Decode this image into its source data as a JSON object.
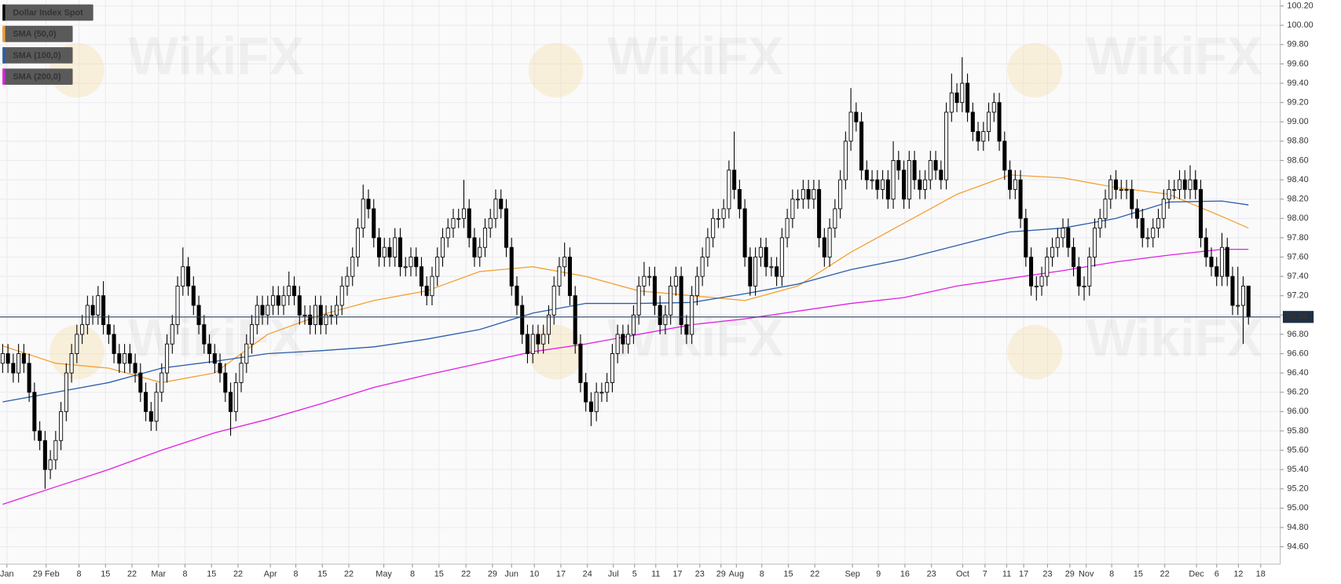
{
  "chart_data": {
    "type": "candlestick",
    "title": "Dollar Index Spot",
    "watermark": "WikiFX",
    "up_color": "#ffffff",
    "down_color": "#000000",
    "grid": true,
    "legend": "upper left",
    "open": [
      96.5,
      96.6,
      96.5,
      96.4,
      96.6,
      96.5,
      96.2,
      95.8,
      95.7,
      95.4,
      95.5,
      95.7,
      96.0,
      96.4,
      96.6,
      96.8,
      96.9,
      97.1,
      97.0,
      97.2,
      96.9,
      96.8,
      96.6,
      96.5,
      96.6,
      96.5,
      96.4,
      96.2,
      96.0,
      95.9,
      96.2,
      96.4,
      96.7,
      96.9,
      97.3,
      97.5,
      97.3,
      97.1,
      96.9,
      96.7,
      96.6,
      96.5,
      96.4,
      96.2,
      96.0,
      96.3,
      96.5,
      96.7,
      96.9,
      97.1,
      97.0,
      97.1,
      97.2,
      97.1,
      97.2,
      97.3,
      97.2,
      97.0,
      97.0,
      96.9,
      97.1,
      96.9,
      97.0,
      97.0,
      97.1,
      97.3,
      97.4,
      97.6,
      97.9,
      98.2,
      98.1,
      97.8,
      97.6,
      97.7,
      97.6,
      97.8,
      97.5,
      97.5,
      97.6,
      97.5,
      97.3,
      97.2,
      97.4,
      97.6,
      97.8,
      97.9,
      98.0,
      98.0,
      98.1,
      97.8,
      97.6,
      97.7,
      97.9,
      98.0,
      98.2,
      98.1,
      97.7,
      97.3,
      97.1,
      96.8,
      96.6,
      96.8,
      96.7,
      96.8,
      97.0,
      97.3,
      97.5,
      97.6,
      97.2,
      96.7,
      96.3,
      96.1,
      96.0,
      96.2,
      96.2,
      96.3,
      96.6,
      96.8,
      96.7,
      96.8,
      97.0,
      97.3,
      97.4,
      97.4,
      97.1,
      96.9,
      97.0,
      97.3,
      97.4,
      96.9,
      96.8,
      97.2,
      97.4,
      97.6,
      97.8,
      98.0,
      98.0,
      98.1,
      98.5,
      98.3,
      98.1,
      97.6,
      97.3,
      97.6,
      97.7,
      97.5,
      97.5,
      97.4,
      97.8,
      98.0,
      98.2,
      98.2,
      98.3,
      98.2,
      98.3,
      97.8,
      97.6,
      97.9,
      98.1,
      98.4,
      98.8,
      99.1,
      99.0,
      98.5,
      98.4,
      98.4,
      98.3,
      98.4,
      98.2,
      98.6,
      98.5,
      98.2,
      98.6,
      98.4,
      98.3,
      98.4,
      98.6,
      98.5,
      98.4,
      99.1,
      99.3,
      99.2,
      99.4,
      99.1,
      98.9,
      98.8,
      98.9,
      99.1,
      99.2,
      98.8,
      98.5,
      98.3,
      98.4,
      98.0,
      97.6,
      97.3,
      97.3,
      97.4,
      97.6,
      97.7,
      97.8,
      97.9,
      97.7,
      97.5,
      97.3,
      97.3,
      97.6,
      97.9,
      98.0,
      98.2,
      98.4,
      98.3,
      98.3,
      98.3,
      98.1,
      98.0,
      97.8,
      97.8,
      97.9,
      98.0,
      98.2,
      98.3,
      98.3,
      98.4,
      98.3,
      98.4,
      98.3,
      97.8,
      97.6,
      97.5,
      97.4,
      97.7,
      97.4,
      97.1,
      97.1,
      97.3
    ],
    "high": [
      96.7,
      96.7,
      96.6,
      96.7,
      96.7,
      96.6,
      96.3,
      95.9,
      95.8,
      95.6,
      95.8,
      96.1,
      96.5,
      96.7,
      96.9,
      97.0,
      97.2,
      97.2,
      97.3,
      97.35,
      97.0,
      96.9,
      96.7,
      96.7,
      96.7,
      96.6,
      96.5,
      96.3,
      96.1,
      96.3,
      96.5,
      96.8,
      97.0,
      97.4,
      97.7,
      97.6,
      97.4,
      97.2,
      97.0,
      96.8,
      96.7,
      96.6,
      96.5,
      96.3,
      96.4,
      96.6,
      96.8,
      97.0,
      97.2,
      97.2,
      97.2,
      97.3,
      97.3,
      97.3,
      97.45,
      97.4,
      97.3,
      97.1,
      97.1,
      97.2,
      97.2,
      97.1,
      97.1,
      97.2,
      97.4,
      97.5,
      97.7,
      98.0,
      98.35,
      98.3,
      98.2,
      97.9,
      97.8,
      97.8,
      97.9,
      97.9,
      97.6,
      97.7,
      97.7,
      97.6,
      97.4,
      97.5,
      97.7,
      97.9,
      98.0,
      98.1,
      98.1,
      98.4,
      98.2,
      97.9,
      97.8,
      98.0,
      98.1,
      98.3,
      98.3,
      98.2,
      97.8,
      97.4,
      97.2,
      96.9,
      96.9,
      96.9,
      96.9,
      97.1,
      97.4,
      97.6,
      97.75,
      97.7,
      97.3,
      96.8,
      96.4,
      96.2,
      96.3,
      96.3,
      96.4,
      96.7,
      96.9,
      96.9,
      96.9,
      97.1,
      97.4,
      97.55,
      97.5,
      97.5,
      97.2,
      97.1,
      97.4,
      97.5,
      97.5,
      97.0,
      97.3,
      97.5,
      97.7,
      97.9,
      98.1,
      98.1,
      98.2,
      98.6,
      98.9,
      98.4,
      98.2,
      97.7,
      97.7,
      97.8,
      97.8,
      97.6,
      97.6,
      97.9,
      98.1,
      98.3,
      98.3,
      98.4,
      98.4,
      98.4,
      98.4,
      97.9,
      98.0,
      98.2,
      98.5,
      98.9,
      99.35,
      99.2,
      99.1,
      98.6,
      98.5,
      98.5,
      98.5,
      98.5,
      98.8,
      98.7,
      98.6,
      98.7,
      98.7,
      98.5,
      98.5,
      98.7,
      98.7,
      98.6,
      99.2,
      99.5,
      99.4,
      99.67,
      99.5,
      99.2,
      99.0,
      99.0,
      99.2,
      99.3,
      99.3,
      98.9,
      98.6,
      98.5,
      98.5,
      98.1,
      97.7,
      97.4,
      97.5,
      97.7,
      97.8,
      97.9,
      98.0,
      98.0,
      97.8,
      97.6,
      97.4,
      97.7,
      98.0,
      98.1,
      98.3,
      98.45,
      98.5,
      98.4,
      98.4,
      98.4,
      98.2,
      98.1,
      97.9,
      98.0,
      98.1,
      98.3,
      98.4,
      98.4,
      98.5,
      98.5,
      98.55,
      98.5,
      98.4,
      97.9,
      97.7,
      97.6,
      97.85,
      97.8,
      97.5,
      97.5,
      97.4,
      97.3
    ],
    "low": [
      96.4,
      96.4,
      96.3,
      96.3,
      96.4,
      96.1,
      95.7,
      95.6,
      95.2,
      95.3,
      95.4,
      95.6,
      95.9,
      96.3,
      96.5,
      96.7,
      96.8,
      96.9,
      96.9,
      96.8,
      96.7,
      96.5,
      96.4,
      96.4,
      96.4,
      96.3,
      96.1,
      95.9,
      95.8,
      95.8,
      96.1,
      96.3,
      96.6,
      96.8,
      97.2,
      97.2,
      97.0,
      96.8,
      96.6,
      96.5,
      96.4,
      96.3,
      96.1,
      95.75,
      95.9,
      96.2,
      96.4,
      96.6,
      96.8,
      96.9,
      96.9,
      97.0,
      97.0,
      97.0,
      97.1,
      97.1,
      96.9,
      96.9,
      96.8,
      96.8,
      96.8,
      96.8,
      96.9,
      96.9,
      97.0,
      97.2,
      97.3,
      97.5,
      97.8,
      98.0,
      97.7,
      97.5,
      97.5,
      97.5,
      97.5,
      97.4,
      97.4,
      97.4,
      97.4,
      97.2,
      97.1,
      97.1,
      97.3,
      97.5,
      97.7,
      97.8,
      97.9,
      97.9,
      97.7,
      97.5,
      97.5,
      97.6,
      97.8,
      97.9,
      98.0,
      97.6,
      97.2,
      97.0,
      96.7,
      96.5,
      96.5,
      96.6,
      96.6,
      96.7,
      96.9,
      97.2,
      97.4,
      97.1,
      96.6,
      96.2,
      96.0,
      95.85,
      95.9,
      96.1,
      96.1,
      96.2,
      96.5,
      96.6,
      96.6,
      96.7,
      96.9,
      97.2,
      97.3,
      97.0,
      96.8,
      96.8,
      96.9,
      97.2,
      96.8,
      96.7,
      96.7,
      97.1,
      97.3,
      97.5,
      97.7,
      97.9,
      97.9,
      98.0,
      98.2,
      98.0,
      97.5,
      97.2,
      97.2,
      97.5,
      97.4,
      97.4,
      97.3,
      97.3,
      97.7,
      97.9,
      98.1,
      98.1,
      98.1,
      98.1,
      97.7,
      97.5,
      97.5,
      97.8,
      98.0,
      98.3,
      98.7,
      98.9,
      98.4,
      98.3,
      98.3,
      98.2,
      98.2,
      98.1,
      98.1,
      98.4,
      98.1,
      98.1,
      98.3,
      98.2,
      98.2,
      98.3,
      98.4,
      98.3,
      98.3,
      99.0,
      99.1,
      99.1,
      99.0,
      98.8,
      98.7,
      98.7,
      98.8,
      99.0,
      98.7,
      98.4,
      98.2,
      98.2,
      97.9,
      97.5,
      97.2,
      97.15,
      97.2,
      97.3,
      97.5,
      97.6,
      97.7,
      97.6,
      97.4,
      97.2,
      97.15,
      97.2,
      97.5,
      97.8,
      97.9,
      98.1,
      98.2,
      98.2,
      98.2,
      98.0,
      97.9,
      97.7,
      97.7,
      97.7,
      97.8,
      97.9,
      98.1,
      98.2,
      98.2,
      98.2,
      98.2,
      98.2,
      97.7,
      97.5,
      97.4,
      97.3,
      97.3,
      97.3,
      97.0,
      97.0,
      96.7,
      96.9
    ],
    "close": [
      96.6,
      96.5,
      96.4,
      96.6,
      96.5,
      96.2,
      95.8,
      95.7,
      95.4,
      95.5,
      95.7,
      96.0,
      96.4,
      96.6,
      96.8,
      96.9,
      97.1,
      97.0,
      97.2,
      96.9,
      96.8,
      96.6,
      96.5,
      96.6,
      96.5,
      96.4,
      96.2,
      96.0,
      95.9,
      96.2,
      96.4,
      96.7,
      96.9,
      97.3,
      97.5,
      97.3,
      97.1,
      96.9,
      96.7,
      96.6,
      96.5,
      96.4,
      96.2,
      96.0,
      96.3,
      96.5,
      96.7,
      96.9,
      97.1,
      97.0,
      97.1,
      97.2,
      97.1,
      97.2,
      97.3,
      97.2,
      97.0,
      97.0,
      96.9,
      97.1,
      96.9,
      97.0,
      97.0,
      97.1,
      97.3,
      97.4,
      97.6,
      97.9,
      98.2,
      98.1,
      97.8,
      97.6,
      97.7,
      97.6,
      97.8,
      97.5,
      97.5,
      97.6,
      97.5,
      97.3,
      97.2,
      97.4,
      97.6,
      97.8,
      97.9,
      98.0,
      98.0,
      98.1,
      97.8,
      97.6,
      97.7,
      97.9,
      98.0,
      98.2,
      98.1,
      97.7,
      97.3,
      97.1,
      96.8,
      96.6,
      96.8,
      96.7,
      96.8,
      97.0,
      97.3,
      97.5,
      97.6,
      97.2,
      96.7,
      96.3,
      96.1,
      96.0,
      96.2,
      96.2,
      96.3,
      96.6,
      96.8,
      96.7,
      96.8,
      97.0,
      97.3,
      97.4,
      97.4,
      97.1,
      96.9,
      97.0,
      97.3,
      97.4,
      96.9,
      96.8,
      97.2,
      97.4,
      97.6,
      97.8,
      98.0,
      98.0,
      98.1,
      98.5,
      98.3,
      98.1,
      97.6,
      97.3,
      97.6,
      97.7,
      97.5,
      97.5,
      97.4,
      97.8,
      98.0,
      98.2,
      98.2,
      98.3,
      98.2,
      98.3,
      97.8,
      97.6,
      97.9,
      98.1,
      98.4,
      98.8,
      99.1,
      99.0,
      98.5,
      98.4,
      98.4,
      98.3,
      98.4,
      98.2,
      98.6,
      98.5,
      98.2,
      98.6,
      98.4,
      98.3,
      98.4,
      98.6,
      98.5,
      98.4,
      99.1,
      99.3,
      99.2,
      99.4,
      99.1,
      98.9,
      98.8,
      98.9,
      99.1,
      99.2,
      98.8,
      98.5,
      98.3,
      98.4,
      98.0,
      97.6,
      97.3,
      97.3,
      97.4,
      97.6,
      97.7,
      97.8,
      97.9,
      97.7,
      97.5,
      97.3,
      97.3,
      97.6,
      97.9,
      98.0,
      98.2,
      98.4,
      98.3,
      98.3,
      98.3,
      98.1,
      98.0,
      97.8,
      97.8,
      97.9,
      98.0,
      98.2,
      98.3,
      98.3,
      98.4,
      98.3,
      98.4,
      98.3,
      97.8,
      97.6,
      97.5,
      97.4,
      97.7,
      97.4,
      97.1,
      97.1,
      97.3,
      96.98
    ],
    "series": [
      {
        "name": "SMA (50,0)",
        "color": "#f5a030",
        "x": [
          0,
          10,
          20,
          30,
          40,
          50,
          60,
          70,
          80,
          90,
          100,
          110,
          120,
          130,
          140,
          150,
          160,
          170,
          180,
          190,
          200,
          210,
          220,
          230,
          235
        ],
        "values": [
          96.68,
          96.5,
          96.45,
          96.3,
          96.4,
          96.8,
          97.0,
          97.15,
          97.25,
          97.45,
          97.5,
          97.4,
          97.25,
          97.2,
          97.15,
          97.3,
          97.65,
          97.95,
          98.25,
          98.45,
          98.42,
          98.32,
          98.25,
          98.02,
          97.9
        ]
      },
      {
        "name": "SMA (100,0)",
        "color": "#2a5ea8",
        "x": [
          0,
          10,
          20,
          30,
          40,
          50,
          60,
          70,
          80,
          90,
          100,
          110,
          120,
          130,
          140,
          150,
          160,
          170,
          180,
          190,
          200,
          210,
          220,
          230,
          235
        ],
        "values": [
          96.1,
          96.2,
          96.3,
          96.45,
          96.52,
          96.6,
          96.63,
          96.67,
          96.75,
          96.85,
          97.02,
          97.12,
          97.12,
          97.13,
          97.22,
          97.32,
          97.47,
          97.58,
          97.72,
          97.86,
          97.9,
          98.0,
          98.17,
          98.18,
          98.14
        ]
      },
      {
        "name": "SMA (200,0)",
        "color": "#e020e0",
        "x": [
          0,
          10,
          20,
          30,
          40,
          50,
          60,
          70,
          80,
          90,
          100,
          110,
          120,
          130,
          140,
          150,
          160,
          170,
          180,
          190,
          200,
          210,
          220,
          230,
          235
        ],
        "values": [
          95.04,
          95.22,
          95.4,
          95.6,
          95.78,
          95.92,
          96.08,
          96.25,
          96.38,
          96.5,
          96.62,
          96.7,
          96.8,
          96.9,
          96.96,
          97.04,
          97.12,
          97.18,
          97.3,
          97.38,
          97.46,
          97.55,
          97.62,
          97.68,
          97.68
        ]
      }
    ],
    "xlim": [
      -0.5,
      241
    ],
    "xticks": [
      {
        "value": 0.8,
        "label": "Jan"
      },
      {
        "value": 8.2,
        "label": "29 Feb"
      },
      {
        "value": 14.4,
        "label": "8"
      },
      {
        "value": 19.4,
        "label": "15"
      },
      {
        "value": 24.4,
        "label": "22"
      },
      {
        "value": 29.4,
        "label": "Mar"
      },
      {
        "value": 34.4,
        "label": "8"
      },
      {
        "value": 39.4,
        "label": "15"
      },
      {
        "value": 44.4,
        "label": "22"
      },
      {
        "value": 50.5,
        "label": "Apr"
      },
      {
        "value": 55.3,
        "label": "8"
      },
      {
        "value": 60.3,
        "label": "15"
      },
      {
        "value": 65.3,
        "label": "22"
      },
      {
        "value": 71.9,
        "label": "May"
      },
      {
        "value": 77.3,
        "label": "8"
      },
      {
        "value": 82.3,
        "label": "15"
      },
      {
        "value": 87.4,
        "label": "22"
      },
      {
        "value": 92.4,
        "label": "29"
      },
      {
        "value": 96.0,
        "label": "Jun"
      },
      {
        "value": 100.3,
        "label": "10"
      },
      {
        "value": 105.3,
        "label": "17"
      },
      {
        "value": 110.3,
        "label": "24"
      },
      {
        "value": 115.2,
        "label": "Jul"
      },
      {
        "value": 119.2,
        "label": "5"
      },
      {
        "value": 123.2,
        "label": "11"
      },
      {
        "value": 127.3,
        "label": "17"
      },
      {
        "value": 131.5,
        "label": "23"
      },
      {
        "value": 135.5,
        "label": "29"
      },
      {
        "value": 138.4,
        "label": "Aug"
      },
      {
        "value": 143.2,
        "label": "8"
      },
      {
        "value": 148.2,
        "label": "15"
      },
      {
        "value": 153.2,
        "label": "22"
      },
      {
        "value": 160.3,
        "label": "Sep"
      },
      {
        "value": 165.2,
        "label": "9"
      },
      {
        "value": 170.2,
        "label": "16"
      },
      {
        "value": 175.2,
        "label": "23"
      },
      {
        "value": 181.1,
        "label": "Oct"
      },
      {
        "value": 185.3,
        "label": "7"
      },
      {
        "value": 189.4,
        "label": "11"
      },
      {
        "value": 192.6,
        "label": "17"
      },
      {
        "value": 197.1,
        "label": "23"
      },
      {
        "value": 201.3,
        "label": "29"
      },
      {
        "value": 204.4,
        "label": "Nov"
      },
      {
        "value": 209.2,
        "label": "8"
      },
      {
        "value": 214.2,
        "label": "15"
      },
      {
        "value": 219.2,
        "label": "22"
      },
      {
        "value": 225.2,
        "label": "Dec"
      },
      {
        "value": 229.0,
        "label": "6"
      },
      {
        "value": 233.1,
        "label": "12"
      },
      {
        "value": 237.3,
        "label": "18"
      }
    ],
    "ylim": [
      94.42,
      100.26
    ],
    "yticks": [
      {
        "value": 94.6,
        "label": "94.60"
      },
      {
        "value": 94.8,
        "label": "94.80"
      },
      {
        "value": 95.0,
        "label": "95.00"
      },
      {
        "value": 95.2,
        "label": "95.20"
      },
      {
        "value": 95.4,
        "label": "95.40"
      },
      {
        "value": 95.6,
        "label": "95.60"
      },
      {
        "value": 95.8,
        "label": "95.80"
      },
      {
        "value": 96.0,
        "label": "96.00"
      },
      {
        "value": 96.2,
        "label": "96.20"
      },
      {
        "value": 96.4,
        "label": "96.40"
      },
      {
        "value": 96.6,
        "label": "96.60"
      },
      {
        "value": 96.8,
        "label": "96.80"
      },
      {
        "value": 97.0,
        "label": "97.00"
      },
      {
        "value": 97.2,
        "label": "97.20"
      },
      {
        "value": 97.4,
        "label": "97.40"
      },
      {
        "value": 97.6,
        "label": "97.60"
      },
      {
        "value": 97.8,
        "label": "97.80"
      },
      {
        "value": 98.0,
        "label": "98.00"
      },
      {
        "value": 98.2,
        "label": "98.20"
      },
      {
        "value": 98.4,
        "label": "98.40"
      },
      {
        "value": 98.6,
        "label": "98.60"
      },
      {
        "value": 98.8,
        "label": "98.80"
      },
      {
        "value": 99.0,
        "label": "99.00"
      },
      {
        "value": 99.2,
        "label": "99.20"
      },
      {
        "value": 99.4,
        "label": "99.40"
      },
      {
        "value": 99.6,
        "label": "99.60"
      },
      {
        "value": 99.8,
        "label": "99.80"
      },
      {
        "value": 100.0,
        "label": "100.00"
      },
      {
        "value": 100.2,
        "label": "100.20"
      }
    ]
  }
}
